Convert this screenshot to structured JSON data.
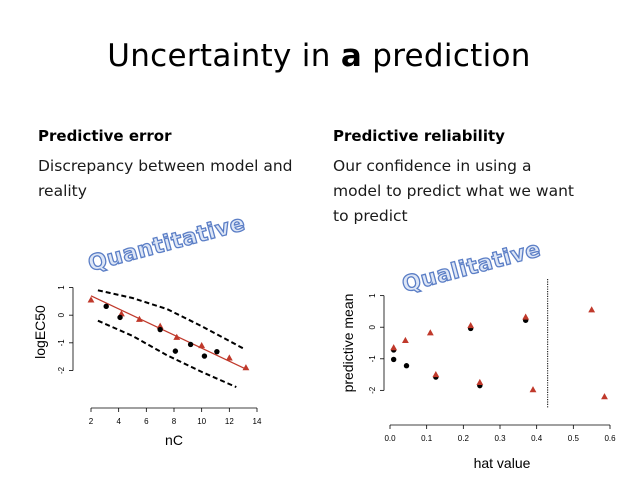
{
  "slide": {
    "title_prefix": "Uncertainty in ",
    "title_emph": "a",
    "title_suffix": " prediction",
    "left": {
      "heading": "Predictive error",
      "body": "Discrepancy between model and reality",
      "stamp": "Quantitative"
    },
    "right": {
      "heading": "Predictive reliability",
      "body": "Our confidence in using a model to predict what we want to predict",
      "stamp": "Qualitative"
    }
  },
  "colors": {
    "triangle": "#c0392b",
    "dot": "#000000",
    "stamp_fill": "#dde6f6",
    "stamp_outline": "#5b7ec6"
  },
  "chart_data": [
    {
      "type": "scatter",
      "xlabel": "nC",
      "ylabel": "logEC50",
      "xlim": [
        2,
        14
      ],
      "ylim": [
        -2.2,
        1.2
      ],
      "x_ticks": [
        2,
        4,
        6,
        8,
        10,
        12,
        14
      ],
      "y_ticks": [
        -2,
        -1,
        0,
        1
      ],
      "series": [
        {
          "marker": "triangle",
          "points": [
            [
              2,
              0.55
            ],
            [
              4.2,
              0.05
            ],
            [
              5.5,
              -0.15
            ],
            [
              7,
              -0.4
            ],
            [
              8.2,
              -0.8
            ],
            [
              10,
              -1.1
            ],
            [
              12,
              -1.55
            ],
            [
              13.2,
              -1.9
            ]
          ]
        },
        {
          "marker": "dot",
          "points": [
            [
              3.1,
              0.32
            ],
            [
              4.1,
              -0.08
            ],
            [
              7,
              -0.52
            ],
            [
              8.1,
              -1.3
            ],
            [
              9.2,
              -1.06
            ],
            [
              10.2,
              -1.48
            ],
            [
              11.1,
              -1.32
            ]
          ]
        }
      ],
      "fit_line": [
        [
          2,
          0.7
        ],
        [
          13.2,
          -1.95
        ]
      ],
      "band_upper": [
        [
          2.5,
          0.9
        ],
        [
          5,
          0.62
        ],
        [
          7.5,
          0.22
        ],
        [
          10,
          -0.4
        ],
        [
          13,
          -1.2
        ]
      ],
      "band_lower": [
        [
          2.5,
          -0.2
        ],
        [
          5,
          -0.75
        ],
        [
          7.5,
          -1.45
        ],
        [
          10,
          -2.05
        ],
        [
          12.5,
          -2.6
        ]
      ]
    },
    {
      "type": "scatter",
      "xlabel": "hat value",
      "ylabel": "predictive mean",
      "xlim": [
        0,
        0.6
      ],
      "ylim": [
        -2.4,
        1.4
      ],
      "x_ticks": [
        0.0,
        0.1,
        0.2,
        0.3,
        0.4,
        0.5,
        0.6
      ],
      "x_tick_labels": [
        "0.0",
        "0.1",
        "0.2",
        "0.3",
        "0.4",
        "0.5",
        "0.6"
      ],
      "y_ticks": [
        -2,
        -1,
        0,
        1
      ],
      "threshold_x": 0.43,
      "series": [
        {
          "marker": "dot",
          "points": [
            [
              0.01,
              -0.72
            ],
            [
              0.01,
              -1.02
            ],
            [
              0.045,
              -1.22
            ],
            [
              0.125,
              -1.58
            ],
            [
              0.22,
              -0.04
            ],
            [
              0.245,
              -1.85
            ],
            [
              0.37,
              0.22
            ]
          ]
        },
        {
          "marker": "triangle",
          "points": [
            [
              0.01,
              -0.65
            ],
            [
              0.042,
              -0.42
            ],
            [
              0.11,
              -0.18
            ],
            [
              0.125,
              -1.5
            ],
            [
              0.22,
              0.05
            ],
            [
              0.245,
              -1.75
            ],
            [
              0.37,
              0.32
            ],
            [
              0.39,
              -1.98
            ],
            [
              0.55,
              0.55
            ],
            [
              0.585,
              -2.2
            ]
          ]
        }
      ]
    }
  ]
}
